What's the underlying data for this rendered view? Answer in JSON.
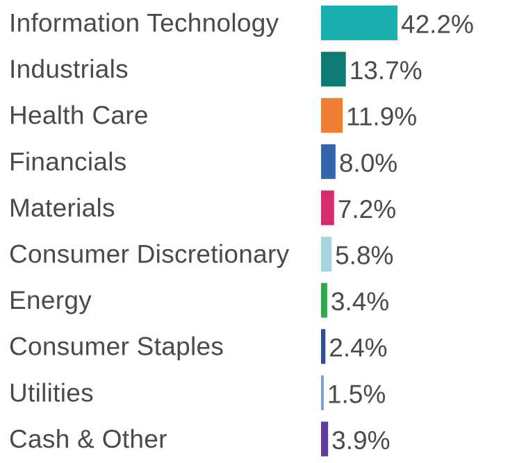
{
  "chart_data": {
    "type": "bar",
    "orientation": "horizontal",
    "categories": [
      "Information Technology",
      "Industrials",
      "Health Care",
      "Financials",
      "Materials",
      "Consumer Discretionary",
      "Energy",
      "Consumer Staples",
      "Utilities",
      "Cash & Other"
    ],
    "values": [
      42.2,
      13.7,
      11.9,
      8.0,
      7.2,
      5.8,
      3.4,
      2.4,
      1.5,
      3.9
    ],
    "value_labels": [
      "42.2%",
      "13.7%",
      "11.9%",
      "8.0%",
      "7.2%",
      "5.8%",
      "3.4%",
      "2.4%",
      "1.5%",
      "3.9%"
    ],
    "colors": [
      "#1ab0b0",
      "#0f7b77",
      "#ee7f33",
      "#3664ad",
      "#d42c6f",
      "#a6d4df",
      "#33a94e",
      "#2d4f9a",
      "#7c9ecf",
      "#5e3c99"
    ],
    "value_unit": "%",
    "title": "",
    "xlabel": "",
    "ylabel": "",
    "grid": false,
    "legend": "none"
  }
}
